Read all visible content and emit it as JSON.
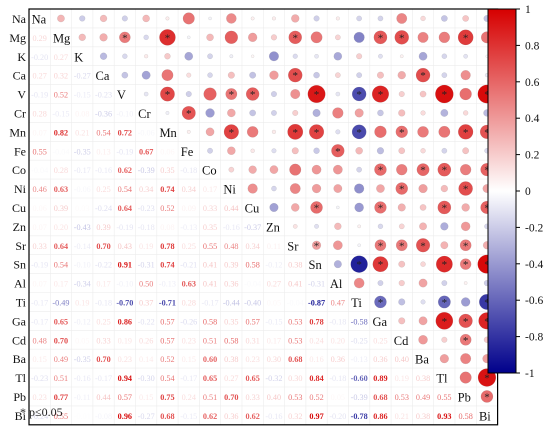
{
  "chart_data": {
    "type": "heatmap",
    "subtype": "correlation-matrix",
    "variables": [
      "Na",
      "Mg",
      "K",
      "Ca",
      "V",
      "Cr",
      "Mn",
      "Fe",
      "Co",
      "Ni",
      "Cu",
      "Zn",
      "Sr",
      "Sn",
      "Al",
      "Ti",
      "Ga",
      "Cd",
      "Ba",
      "Tl",
      "Pb",
      "Bi"
    ],
    "upper_triangle": "circles (size and color = coefficient, * = significant)",
    "lower_triangle": "coefficient text",
    "lower_rows": [
      [],
      [
        "0.29"
      ],
      [
        "-0.20",
        "0.27"
      ],
      [
        "0.27",
        "0.32",
        "-0.27"
      ],
      [
        "-0.19",
        "0.52",
        "-0.15",
        "-0.23"
      ],
      [
        "0.28",
        "-0.15",
        "0.08",
        "-0.36",
        "-0.10"
      ],
      [
        "0.07",
        "0.82",
        "0.21",
        "0.54",
        "0.72",
        "-0.06"
      ],
      [
        "0.55",
        "-0.04",
        "-0.35",
        "0.13",
        "-0.19",
        "0.67",
        "0.06"
      ],
      [
        "-0.04",
        "0.28",
        "-0.17",
        "-0.16",
        "0.62",
        "-0.39",
        "0.35",
        "-0.18"
      ],
      [
        "0.46",
        "0.63",
        "-0.06",
        "0.25",
        "0.54",
        "0.34",
        "0.74",
        "0.34",
        "0.17"
      ],
      [
        "0.06",
        "0.39",
        "0.03",
        "-0.24",
        "0.64",
        "-0.23",
        "0.52",
        "0.09",
        "0.33",
        "0.44"
      ],
      [
        "0.07",
        "0.20",
        "-0.43",
        "0.39",
        "-0.19",
        "-0.18",
        "0.08",
        "-0.13",
        "0.35",
        "-0.16",
        "-0.37"
      ],
      [
        "0.33",
        "0.64",
        "-0.14",
        "0.70",
        "0.43",
        "0.19",
        "0.78",
        "0.25",
        "0.55",
        "0.48",
        "0.34",
        "0.11"
      ],
      [
        "-0.19",
        "0.54",
        "-0.10",
        "-0.22",
        "0.91",
        "-0.31",
        "0.74",
        "-0.21",
        "0.41",
        "0.39",
        "0.58",
        "-0.12",
        "0.38"
      ],
      [
        "0.07",
        "0.17",
        "-0.34",
        "0.17",
        "-0.10",
        "0.50",
        "-0.13",
        "0.63",
        "0.41",
        "0.36",
        "-0.04",
        "0.27",
        "0.41",
        "-0.31"
      ],
      [
        "-0.17",
        "-0.49",
        "0.19",
        "-0.18",
        "-0.70",
        "0.37",
        "-0.71",
        "0.28",
        "-0.17",
        "-0.44",
        "-0.40",
        "0.05",
        "-0.04",
        "-0.87",
        "0.47"
      ],
      [
        "-0.17",
        "0.65",
        "-0.12",
        "0.25",
        "0.86",
        "-0.22",
        "0.57",
        "-0.26",
        "0.58",
        "0.35",
        "0.57",
        "-0.15",
        "0.53",
        "0.78",
        "-0.18",
        "-0.58"
      ],
      [
        "0.48",
        "0.70",
        "0.05",
        "0.33",
        "0.19",
        "0.26",
        "0.57",
        "0.23",
        "0.51",
        "0.58",
        "0.31",
        "0.17",
        "0.53",
        "0.24",
        "0.20",
        "-0.25",
        "0.25"
      ],
      [
        "0.15",
        "0.49",
        "-0.35",
        "0.70",
        "0.23",
        "0.14",
        "0.52",
        "0.15",
        "0.60",
        "0.38",
        "0.23",
        "0.30",
        "0.68",
        "0.16",
        "0.36",
        "-0.13",
        "0.36",
        "0.40"
      ],
      [
        "-0.23",
        "0.51",
        "-0.16",
        "-0.17",
        "0.94",
        "-0.30",
        "0.54",
        "-0.17",
        "0.65",
        "0.27",
        "0.65",
        "-0.32",
        "0.30",
        "0.84",
        "-0.18",
        "-0.60",
        "0.89",
        "0.19",
        "0.38"
      ],
      [
        "0.23",
        "0.77",
        "-0.11",
        "0.44",
        "0.57",
        "0.15",
        "0.75",
        "0.24",
        "0.51",
        "0.70",
        "0.33",
        "0.40",
        "0.53",
        "0.52",
        "0.05",
        "-0.39",
        "0.68",
        "0.53",
        "0.49",
        "0.55"
      ],
      [
        "-0.24",
        "0.55",
        "-0.01",
        "-0.08",
        "0.96",
        "-0.27",
        "0.68",
        "-0.15",
        "0.62",
        "0.36",
        "0.62",
        "-0.16",
        "0.32",
        "0.97",
        "-0.20",
        "-0.78",
        "0.86",
        "0.21",
        "0.38",
        "0.93",
        "0.58"
      ]
    ],
    "significance_marks": [
      [
        1,
        4
      ],
      [
        1,
        6
      ],
      [
        1,
        12
      ],
      [
        1,
        16
      ],
      [
        1,
        17
      ],
      [
        1,
        20
      ],
      [
        3,
        12
      ],
      [
        3,
        18
      ],
      [
        4,
        6
      ],
      [
        4,
        9
      ],
      [
        4,
        10
      ],
      [
        4,
        13
      ],
      [
        4,
        15
      ],
      [
        4,
        16
      ],
      [
        4,
        19
      ],
      [
        4,
        21
      ],
      [
        5,
        7
      ],
      [
        6,
        9
      ],
      [
        6,
        12
      ],
      [
        6,
        13
      ],
      [
        6,
        15
      ],
      [
        6,
        17
      ],
      [
        6,
        20
      ],
      [
        6,
        21
      ],
      [
        7,
        14
      ],
      [
        8,
        16
      ],
      [
        8,
        18
      ],
      [
        8,
        19
      ],
      [
        8,
        21
      ],
      [
        9,
        17
      ],
      [
        9,
        20
      ],
      [
        10,
        13
      ],
      [
        10,
        16
      ],
      [
        10,
        19
      ],
      [
        10,
        21
      ],
      [
        12,
        13
      ],
      [
        12,
        16
      ],
      [
        12,
        17
      ],
      [
        12,
        18
      ],
      [
        12,
        20
      ],
      [
        13,
        15
      ],
      [
        13,
        16
      ],
      [
        13,
        19
      ],
      [
        13,
        20
      ],
      [
        13,
        21
      ],
      [
        15,
        16
      ],
      [
        15,
        19
      ],
      [
        15,
        21
      ],
      [
        16,
        19
      ],
      [
        16,
        20
      ],
      [
        16,
        21
      ],
      [
        17,
        20
      ],
      [
        19,
        21
      ],
      [
        20,
        21
      ]
    ],
    "colorbar": {
      "range": [
        -1,
        1
      ],
      "ticks": [
        "1",
        "0.8",
        "0.6",
        "0.4",
        "0.2",
        "0",
        "-0.2",
        "-0.4",
        "-0.6",
        "-0.8",
        "-1"
      ],
      "colors": {
        "negative": "#00008b",
        "zero": "#ffffff",
        "positive": "#d60000"
      }
    },
    "footnote": "* p≤0.05"
  }
}
